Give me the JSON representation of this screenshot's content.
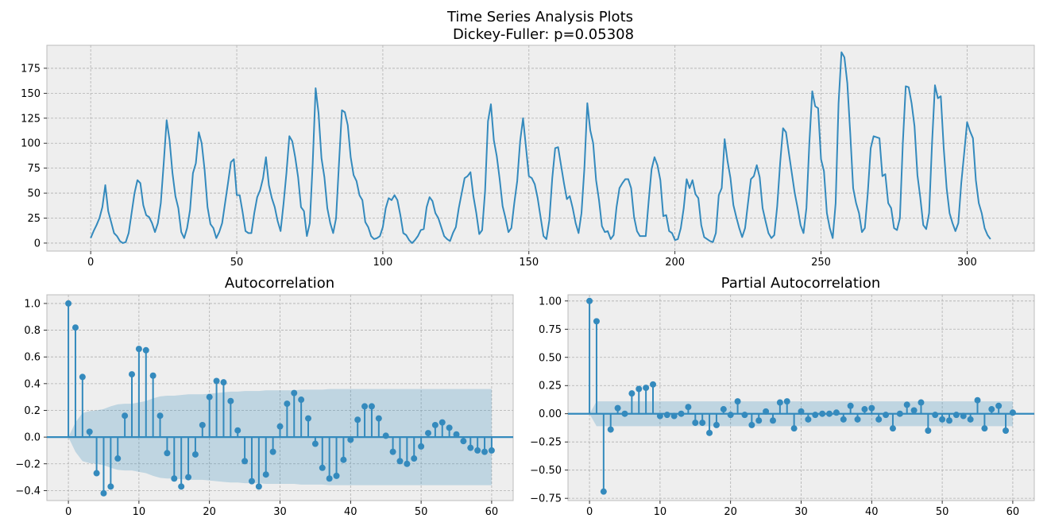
{
  "figure": {
    "title_line1": "Time Series Analysis Plots",
    "title_line2": "Dickey-Fuller: p=0.05308"
  },
  "colors": {
    "line": "#348abd",
    "band": "#348abd",
    "axes_bg": "#eeeeee"
  },
  "chart_data": [
    {
      "type": "line",
      "title": "",
      "xlim": [
        -15,
        323
      ],
      "ylim": [
        -8,
        198
      ],
      "xticks": [
        0,
        50,
        100,
        150,
        200,
        250,
        300
      ],
      "yticks": [
        0,
        25,
        50,
        75,
        100,
        125,
        150,
        175
      ],
      "grid": true,
      "x": [
        0,
        1,
        2,
        3,
        4,
        5,
        6,
        7,
        8,
        9,
        10,
        11,
        12,
        13,
        14,
        15,
        16,
        17,
        18,
        19,
        20,
        21,
        22,
        23,
        24,
        25,
        26,
        27,
        28,
        29,
        30,
        31,
        32,
        33,
        34,
        35,
        36,
        37,
        38,
        39,
        40,
        41,
        42,
        43,
        44,
        45,
        46,
        47,
        48,
        49,
        50,
        51,
        52,
        53,
        54,
        55,
        56,
        57,
        58,
        59,
        60,
        61,
        62,
        63,
        64,
        65,
        66,
        67,
        68,
        69,
        70,
        71,
        72,
        73,
        74,
        75,
        76,
        77,
        78,
        79,
        80,
        81,
        82,
        83,
        84,
        85,
        86,
        87,
        88,
        89,
        90,
        91,
        92,
        93,
        94,
        95,
        96,
        97,
        98,
        99,
        100,
        101,
        102,
        103,
        104,
        105,
        106,
        107,
        108,
        109,
        110,
        111,
        112,
        113,
        114,
        115,
        116,
        117,
        118,
        119,
        120,
        121,
        122,
        123,
        124,
        125,
        126,
        127,
        128,
        129,
        130,
        131,
        132,
        133,
        134,
        135,
        136,
        137,
        138,
        139,
        140,
        141,
        142,
        143,
        144,
        145,
        146,
        147,
        148,
        149,
        150,
        151,
        152,
        153,
        154,
        155,
        156,
        157,
        158,
        159,
        160,
        161,
        162,
        163,
        164,
        165,
        166,
        167,
        168,
        169,
        170,
        171,
        172,
        173,
        174,
        175,
        176,
        177,
        178,
        179,
        180,
        181,
        182,
        183,
        184,
        185,
        186,
        187,
        188,
        189,
        190,
        191,
        192,
        193,
        194,
        195,
        196,
        197,
        198,
        199,
        200,
        201,
        202,
        203,
        204,
        205,
        206,
        207,
        208,
        209,
        210,
        211,
        212,
        213,
        214,
        215,
        216,
        217,
        218,
        219,
        220,
        221,
        222,
        223,
        224,
        225,
        226,
        227,
        228,
        229,
        230,
        231,
        232,
        233,
        234,
        235,
        236,
        237,
        238,
        239,
        240,
        241,
        242,
        243,
        244,
        245,
        246,
        247,
        248,
        249,
        250,
        251,
        252,
        253,
        254,
        255,
        256,
        257,
        258,
        259,
        260,
        261,
        262,
        263,
        264,
        265,
        266,
        267,
        268,
        269,
        270,
        271,
        272,
        273,
        274,
        275,
        276,
        277,
        278,
        279,
        280,
        281,
        282,
        283,
        284,
        285,
        286,
        287,
        288,
        289,
        290,
        291,
        292,
        293,
        294,
        295,
        296,
        297,
        298,
        299,
        300,
        301,
        302,
        303,
        304,
        305,
        306,
        307,
        308
      ],
      "y": [
        5,
        12,
        18,
        25,
        36,
        58,
        32,
        21,
        10,
        7,
        2,
        0,
        1,
        10,
        30,
        50,
        63,
        60,
        38,
        28,
        26,
        20,
        11,
        20,
        40,
        80,
        123,
        103,
        70,
        47,
        35,
        11,
        5,
        15,
        33,
        70,
        80,
        111,
        100,
        73,
        36,
        19,
        15,
        5,
        11,
        20,
        40,
        60,
        81,
        84,
        48,
        48,
        31,
        12,
        10,
        10,
        30,
        46,
        53,
        65,
        86,
        58,
        45,
        36,
        22,
        12,
        39,
        70,
        107,
        102,
        86,
        66,
        36,
        32,
        7,
        20,
        80,
        155,
        130,
        85,
        66,
        35,
        20,
        10,
        25,
        80,
        133,
        131,
        118,
        86,
        68,
        62,
        48,
        43,
        21,
        16,
        7,
        4,
        5,
        7,
        16,
        35,
        45,
        43,
        48,
        43,
        28,
        10,
        8,
        3,
        0,
        3,
        7,
        13,
        14,
        36,
        46,
        42,
        30,
        25,
        16,
        7,
        4,
        2,
        10,
        16,
        35,
        50,
        65,
        67,
        71,
        47,
        30,
        9,
        13,
        52,
        122,
        139,
        103,
        87,
        64,
        37,
        25,
        11,
        15,
        40,
        62,
        102,
        125,
        96,
        67,
        65,
        59,
        45,
        26,
        7,
        4,
        23,
        65,
        95,
        96,
        78,
        60,
        44,
        47,
        35,
        20,
        10,
        30,
        75,
        140,
        113,
        100,
        63,
        43,
        17,
        11,
        12,
        4,
        8,
        36,
        55,
        60,
        64,
        64,
        55,
        26,
        12,
        7,
        7,
        7,
        42,
        74,
        86,
        78,
        63,
        27,
        28,
        12,
        10,
        3,
        4,
        15,
        35,
        64,
        55,
        63,
        49,
        45,
        18,
        6,
        4,
        2,
        1,
        10,
        48,
        55,
        104,
        82,
        65,
        38,
        26,
        15,
        6,
        15,
        40,
        64,
        67,
        78,
        66,
        35,
        22,
        10,
        5,
        8,
        37,
        80,
        115,
        111,
        90,
        70,
        50,
        35,
        18,
        10,
        35,
        100,
        152,
        137,
        135,
        84,
        72,
        30,
        15,
        5,
        40,
        140,
        191,
        186,
        160,
        110,
        55,
        40,
        30,
        11,
        15,
        50,
        95,
        107,
        106,
        105,
        67,
        69,
        40,
        35,
        15,
        13,
        25,
        100,
        157,
        156,
        140,
        117,
        68,
        45,
        18,
        14,
        30,
        100,
        158,
        145,
        147,
        95,
        55,
        30,
        20,
        12,
        20,
        60,
        90,
        121,
        112,
        105,
        63,
        40,
        30,
        15,
        8,
        4
      ]
    },
    {
      "type": "stem",
      "title": "Autocorrelation",
      "xlim": [
        -3.05,
        63.05
      ],
      "ylim": [
        -0.475,
        1.065
      ],
      "xticks": [
        0,
        10,
        20,
        30,
        40,
        50,
        60
      ],
      "yticks": [
        -0.4,
        -0.2,
        0.0,
        0.2,
        0.4,
        0.6,
        0.8,
        1.0
      ],
      "ytick_labels": [
        "−0.4",
        "−0.2",
        "0.0",
        "0.2",
        "0.4",
        "0.6",
        "0.8",
        "1.0"
      ],
      "grid": true,
      "values": [
        1.0,
        0.82,
        0.45,
        0.04,
        -0.27,
        -0.42,
        -0.37,
        -0.16,
        0.16,
        0.47,
        0.66,
        0.65,
        0.46,
        0.16,
        -0.12,
        -0.31,
        -0.37,
        -0.3,
        -0.13,
        0.09,
        0.3,
        0.42,
        0.41,
        0.27,
        0.05,
        -0.18,
        -0.33,
        -0.37,
        -0.28,
        -0.11,
        0.08,
        0.25,
        0.33,
        0.28,
        0.14,
        -0.05,
        -0.23,
        -0.31,
        -0.29,
        -0.17,
        -0.02,
        0.13,
        0.23,
        0.23,
        0.14,
        0.01,
        -0.11,
        -0.18,
        -0.2,
        -0.16,
        -0.07,
        0.03,
        0.09,
        0.11,
        0.07,
        0.02,
        -0.03,
        -0.08,
        -0.1,
        -0.11,
        -0.1
      ],
      "confint": [
        0.0,
        0.11,
        0.18,
        0.195,
        0.2,
        0.21,
        0.23,
        0.245,
        0.25,
        0.25,
        0.26,
        0.27,
        0.29,
        0.305,
        0.31,
        0.31,
        0.315,
        0.32,
        0.32,
        0.32,
        0.325,
        0.33,
        0.335,
        0.34,
        0.34,
        0.345,
        0.345,
        0.345,
        0.35,
        0.35,
        0.35,
        0.35,
        0.35,
        0.355,
        0.355,
        0.355,
        0.355,
        0.36,
        0.36,
        0.36,
        0.36,
        0.36,
        0.36,
        0.36,
        0.36,
        0.36,
        0.36,
        0.36,
        0.36,
        0.36,
        0.36,
        0.36,
        0.36,
        0.36,
        0.36,
        0.36,
        0.36,
        0.36,
        0.36,
        0.36,
        0.36
      ]
    },
    {
      "type": "stem",
      "title": "Partial Autocorrelation",
      "xlim": [
        -3.05,
        63.05
      ],
      "ylim": [
        -0.77,
        1.055
      ],
      "xticks": [
        0,
        10,
        20,
        30,
        40,
        50,
        60
      ],
      "yticks": [
        -0.75,
        -0.5,
        -0.25,
        0.0,
        0.25,
        0.5,
        0.75,
        1.0
      ],
      "ytick_labels": [
        "−0.75",
        "−0.50",
        "−0.25",
        "0.00",
        "0.25",
        "0.50",
        "0.75",
        "1.00"
      ],
      "grid": true,
      "values": [
        1.0,
        0.82,
        -0.69,
        -0.14,
        0.05,
        0.0,
        0.18,
        0.22,
        0.23,
        0.26,
        -0.02,
        -0.01,
        -0.02,
        0.0,
        0.06,
        -0.08,
        -0.08,
        -0.17,
        -0.1,
        0.04,
        -0.01,
        0.11,
        -0.01,
        -0.1,
        -0.06,
        0.02,
        -0.06,
        0.1,
        0.11,
        -0.13,
        0.02,
        -0.05,
        -0.01,
        0.0,
        0.0,
        0.01,
        -0.05,
        0.07,
        -0.05,
        0.04,
        0.05,
        -0.05,
        -0.01,
        -0.13,
        0.0,
        0.08,
        0.03,
        0.1,
        -0.15,
        -0.01,
        -0.05,
        -0.06,
        -0.01,
        -0.02,
        -0.05,
        0.12,
        -0.13,
        0.04,
        0.07,
        -0.15,
        0.01
      ],
      "confint": [
        0.0,
        0.11,
        0.11,
        0.11,
        0.11,
        0.11,
        0.11,
        0.11,
        0.11,
        0.11,
        0.11,
        0.11,
        0.11,
        0.11,
        0.11,
        0.11,
        0.11,
        0.11,
        0.11,
        0.11,
        0.11,
        0.11,
        0.11,
        0.11,
        0.11,
        0.11,
        0.11,
        0.11,
        0.11,
        0.11,
        0.11,
        0.11,
        0.11,
        0.11,
        0.11,
        0.11,
        0.11,
        0.11,
        0.11,
        0.11,
        0.11,
        0.11,
        0.11,
        0.11,
        0.11,
        0.11,
        0.11,
        0.11,
        0.11,
        0.11,
        0.11,
        0.11,
        0.11,
        0.11,
        0.11,
        0.11,
        0.11,
        0.11,
        0.11,
        0.11,
        0.11
      ]
    }
  ]
}
